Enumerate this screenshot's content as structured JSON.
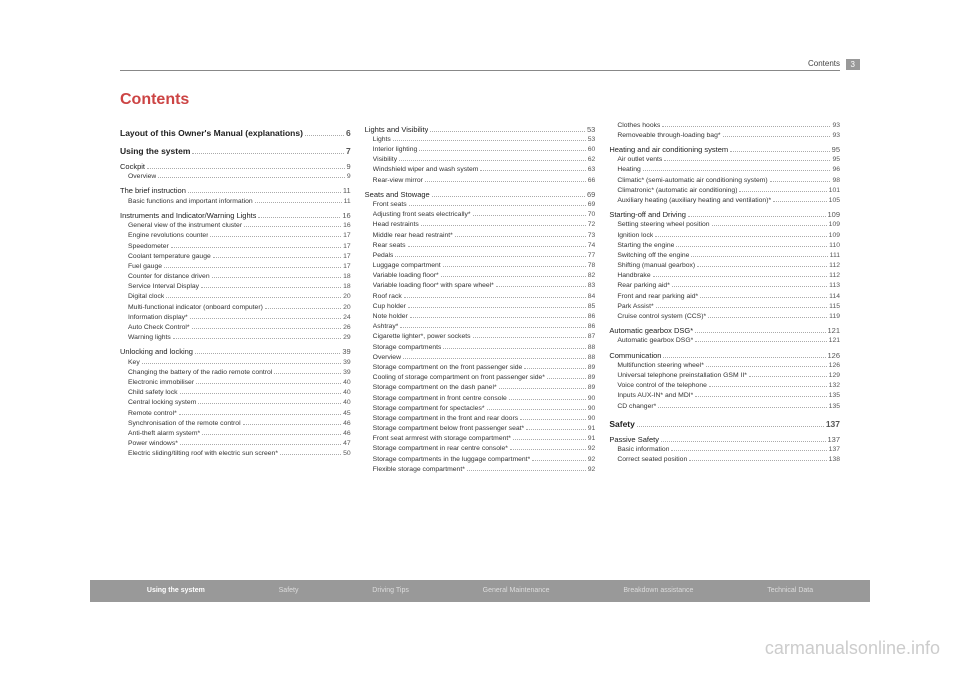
{
  "header": {
    "label": "Contents",
    "page": "3"
  },
  "title": "Contents",
  "watermark": "carmanualsonline.info",
  "footer": [
    "Using the system",
    "Safety",
    "Driving Tips",
    "General Maintenance",
    "Breakdown assistance",
    "Technical Data"
  ],
  "col1": [
    {
      "t": "section",
      "label": "Layout of this Owner's Manual (explanations)",
      "page": "6"
    },
    {
      "t": "section",
      "label": "Using the system",
      "page": "7"
    },
    {
      "t": "sub",
      "label": "Cockpit",
      "page": "9"
    },
    {
      "t": "item",
      "label": "Overview",
      "page": "9"
    },
    {
      "t": "sub",
      "label": "The brief instruction",
      "page": "11"
    },
    {
      "t": "item",
      "label": "Basic functions and important information",
      "page": "11"
    },
    {
      "t": "sub",
      "label": "Instruments and Indicator/Warning Lights",
      "page": "16"
    },
    {
      "t": "item",
      "label": "General view of the instrument cluster",
      "page": "16"
    },
    {
      "t": "item",
      "label": "Engine revolutions counter",
      "page": "17"
    },
    {
      "t": "item",
      "label": "Speedometer",
      "page": "17"
    },
    {
      "t": "item",
      "label": "Coolant temperature gauge",
      "page": "17"
    },
    {
      "t": "item",
      "label": "Fuel gauge",
      "page": "17"
    },
    {
      "t": "item",
      "label": "Counter for distance driven",
      "page": "18"
    },
    {
      "t": "item",
      "label": "Service Interval Display",
      "page": "18"
    },
    {
      "t": "item",
      "label": "Digital clock",
      "page": "20"
    },
    {
      "t": "item",
      "label": "Multi-functional indicator (onboard computer)",
      "page": "20"
    },
    {
      "t": "item",
      "label": "Information display*",
      "page": "24"
    },
    {
      "t": "item",
      "label": "Auto Check Control*",
      "page": "26"
    },
    {
      "t": "item",
      "label": "Warning lights",
      "page": "29"
    },
    {
      "t": "sub",
      "label": "Unlocking and locking",
      "page": "39"
    },
    {
      "t": "item",
      "label": "Key",
      "page": "39"
    },
    {
      "t": "item",
      "label": "Changing the battery of the radio remote control",
      "page": "39"
    },
    {
      "t": "item",
      "label": "Electronic immobiliser",
      "page": "40"
    },
    {
      "t": "item",
      "label": "Child safety lock",
      "page": "40"
    },
    {
      "t": "item",
      "label": "Central locking system",
      "page": "40"
    },
    {
      "t": "item",
      "label": "Remote control*",
      "page": "45"
    },
    {
      "t": "item",
      "label": "Synchronisation of the remote control",
      "page": "46"
    },
    {
      "t": "item",
      "label": "Anti-theft alarm system*",
      "page": "46"
    },
    {
      "t": "item",
      "label": "Power windows*",
      "page": "47"
    },
    {
      "t": "item",
      "label": "Electric sliding/tilting roof with electric sun screen*",
      "page": "50"
    }
  ],
  "col2": [
    {
      "t": "sub",
      "label": "Lights and Visibility",
      "page": "53"
    },
    {
      "t": "item",
      "label": "Lights",
      "page": "53"
    },
    {
      "t": "item",
      "label": "Interior lighting",
      "page": "60"
    },
    {
      "t": "item",
      "label": "Visibility",
      "page": "62"
    },
    {
      "t": "item",
      "label": "Windshield wiper and wash system",
      "page": "63"
    },
    {
      "t": "item",
      "label": "Rear-view mirror",
      "page": "66"
    },
    {
      "t": "sub",
      "label": "Seats and Stowage",
      "page": "69"
    },
    {
      "t": "item",
      "label": "Front seats",
      "page": "69"
    },
    {
      "t": "item",
      "label": "Adjusting front seats electrically*",
      "page": "70"
    },
    {
      "t": "item",
      "label": "Head restraints",
      "page": "72"
    },
    {
      "t": "item",
      "label": "Middle rear head restraint*",
      "page": "73"
    },
    {
      "t": "item",
      "label": "Rear seats",
      "page": "74"
    },
    {
      "t": "item",
      "label": "Pedals",
      "page": "77"
    },
    {
      "t": "item",
      "label": "Luggage compartment",
      "page": "78"
    },
    {
      "t": "item",
      "label": "Variable loading floor*",
      "page": "82"
    },
    {
      "t": "item",
      "label": "Variable loading floor* with spare wheel*",
      "page": "83"
    },
    {
      "t": "item",
      "label": "Roof rack",
      "page": "84"
    },
    {
      "t": "item",
      "label": "Cup holder",
      "page": "85"
    },
    {
      "t": "item",
      "label": "Note holder",
      "page": "86"
    },
    {
      "t": "item",
      "label": "Ashtray*",
      "page": "86"
    },
    {
      "t": "item",
      "label": "Cigarette lighter*, power sockets",
      "page": "87"
    },
    {
      "t": "item",
      "label": "Storage compartments",
      "page": "88"
    },
    {
      "t": "item",
      "label": "Overview",
      "page": "88"
    },
    {
      "t": "item",
      "label": "Storage compartment on the front passenger side",
      "page": "89"
    },
    {
      "t": "item",
      "label": "Cooling of storage compartment on front passenger side*",
      "page": "89"
    },
    {
      "t": "item",
      "label": "Storage compartment on the dash panel*",
      "page": "89"
    },
    {
      "t": "item",
      "label": "Storage compartment in front centre console",
      "page": "90"
    },
    {
      "t": "item",
      "label": "Storage compartment for spectacles*",
      "page": "90"
    },
    {
      "t": "item",
      "label": "Storage compartment in the front and rear doors",
      "page": "90"
    },
    {
      "t": "item",
      "label": "Storage compartment below front passenger seat*",
      "page": "91"
    },
    {
      "t": "item",
      "label": "Front seat armrest with storage compartment*",
      "page": "91"
    },
    {
      "t": "item",
      "label": "Storage compartment in rear centre console*",
      "page": "92"
    },
    {
      "t": "item",
      "label": "Storage compartments in the luggage compartment*",
      "page": "92"
    },
    {
      "t": "item",
      "label": "Flexible storage compartment*",
      "page": "92"
    }
  ],
  "col3": [
    {
      "t": "item",
      "label": "Clothes hooks",
      "page": "93"
    },
    {
      "t": "item",
      "label": "Removeable through-loading bag*",
      "page": "93"
    },
    {
      "t": "sub",
      "label": "Heating and air conditioning system",
      "page": "95"
    },
    {
      "t": "item",
      "label": "Air outlet vents",
      "page": "95"
    },
    {
      "t": "item",
      "label": "Heating",
      "page": "96"
    },
    {
      "t": "item",
      "label": "Climatic* (semi-automatic air conditioning system)",
      "page": "98"
    },
    {
      "t": "item",
      "label": "Climatronic* (automatic air conditioning)",
      "page": "101"
    },
    {
      "t": "item",
      "label": "Auxiliary heating (auxiliary heating and ventilation)*",
      "page": "105"
    },
    {
      "t": "sub",
      "label": "Starting-off and Driving",
      "page": "109"
    },
    {
      "t": "item",
      "label": "Setting steering wheel position",
      "page": "109"
    },
    {
      "t": "item",
      "label": "Ignition lock",
      "page": "109"
    },
    {
      "t": "item",
      "label": "Starting the engine",
      "page": "110"
    },
    {
      "t": "item",
      "label": "Switching off the engine",
      "page": "111"
    },
    {
      "t": "item",
      "label": "Shifting (manual gearbox)",
      "page": "112"
    },
    {
      "t": "item",
      "label": "Handbrake",
      "page": "112"
    },
    {
      "t": "item",
      "label": "Rear parking aid*",
      "page": "113"
    },
    {
      "t": "item",
      "label": "Front and rear parking aid*",
      "page": "114"
    },
    {
      "t": "item",
      "label": "Park Assist*",
      "page": "115"
    },
    {
      "t": "item",
      "label": "Cruise control system (CCS)*",
      "page": "119"
    },
    {
      "t": "sub",
      "label": "Automatic gearbox DSG*",
      "page": "121"
    },
    {
      "t": "item",
      "label": "Automatic gearbox DSG*",
      "page": "121"
    },
    {
      "t": "sub",
      "label": "Communication",
      "page": "126"
    },
    {
      "t": "item",
      "label": "Multifunction steering wheel*",
      "page": "126"
    },
    {
      "t": "item",
      "label": "Universal telephone preinstallation GSM II*",
      "page": "129"
    },
    {
      "t": "item",
      "label": "Voice control of the telephone",
      "page": "132"
    },
    {
      "t": "item",
      "label": "Inputs AUX-IN* and MDI*",
      "page": "135"
    },
    {
      "t": "item",
      "label": "CD changer*",
      "page": "135"
    },
    {
      "t": "section",
      "label": "Safety",
      "page": "137"
    },
    {
      "t": "sub",
      "label": "Passive Safety",
      "page": "137"
    },
    {
      "t": "item",
      "label": "Basic information",
      "page": "137"
    },
    {
      "t": "item",
      "label": "Correct seated position",
      "page": "138"
    }
  ]
}
